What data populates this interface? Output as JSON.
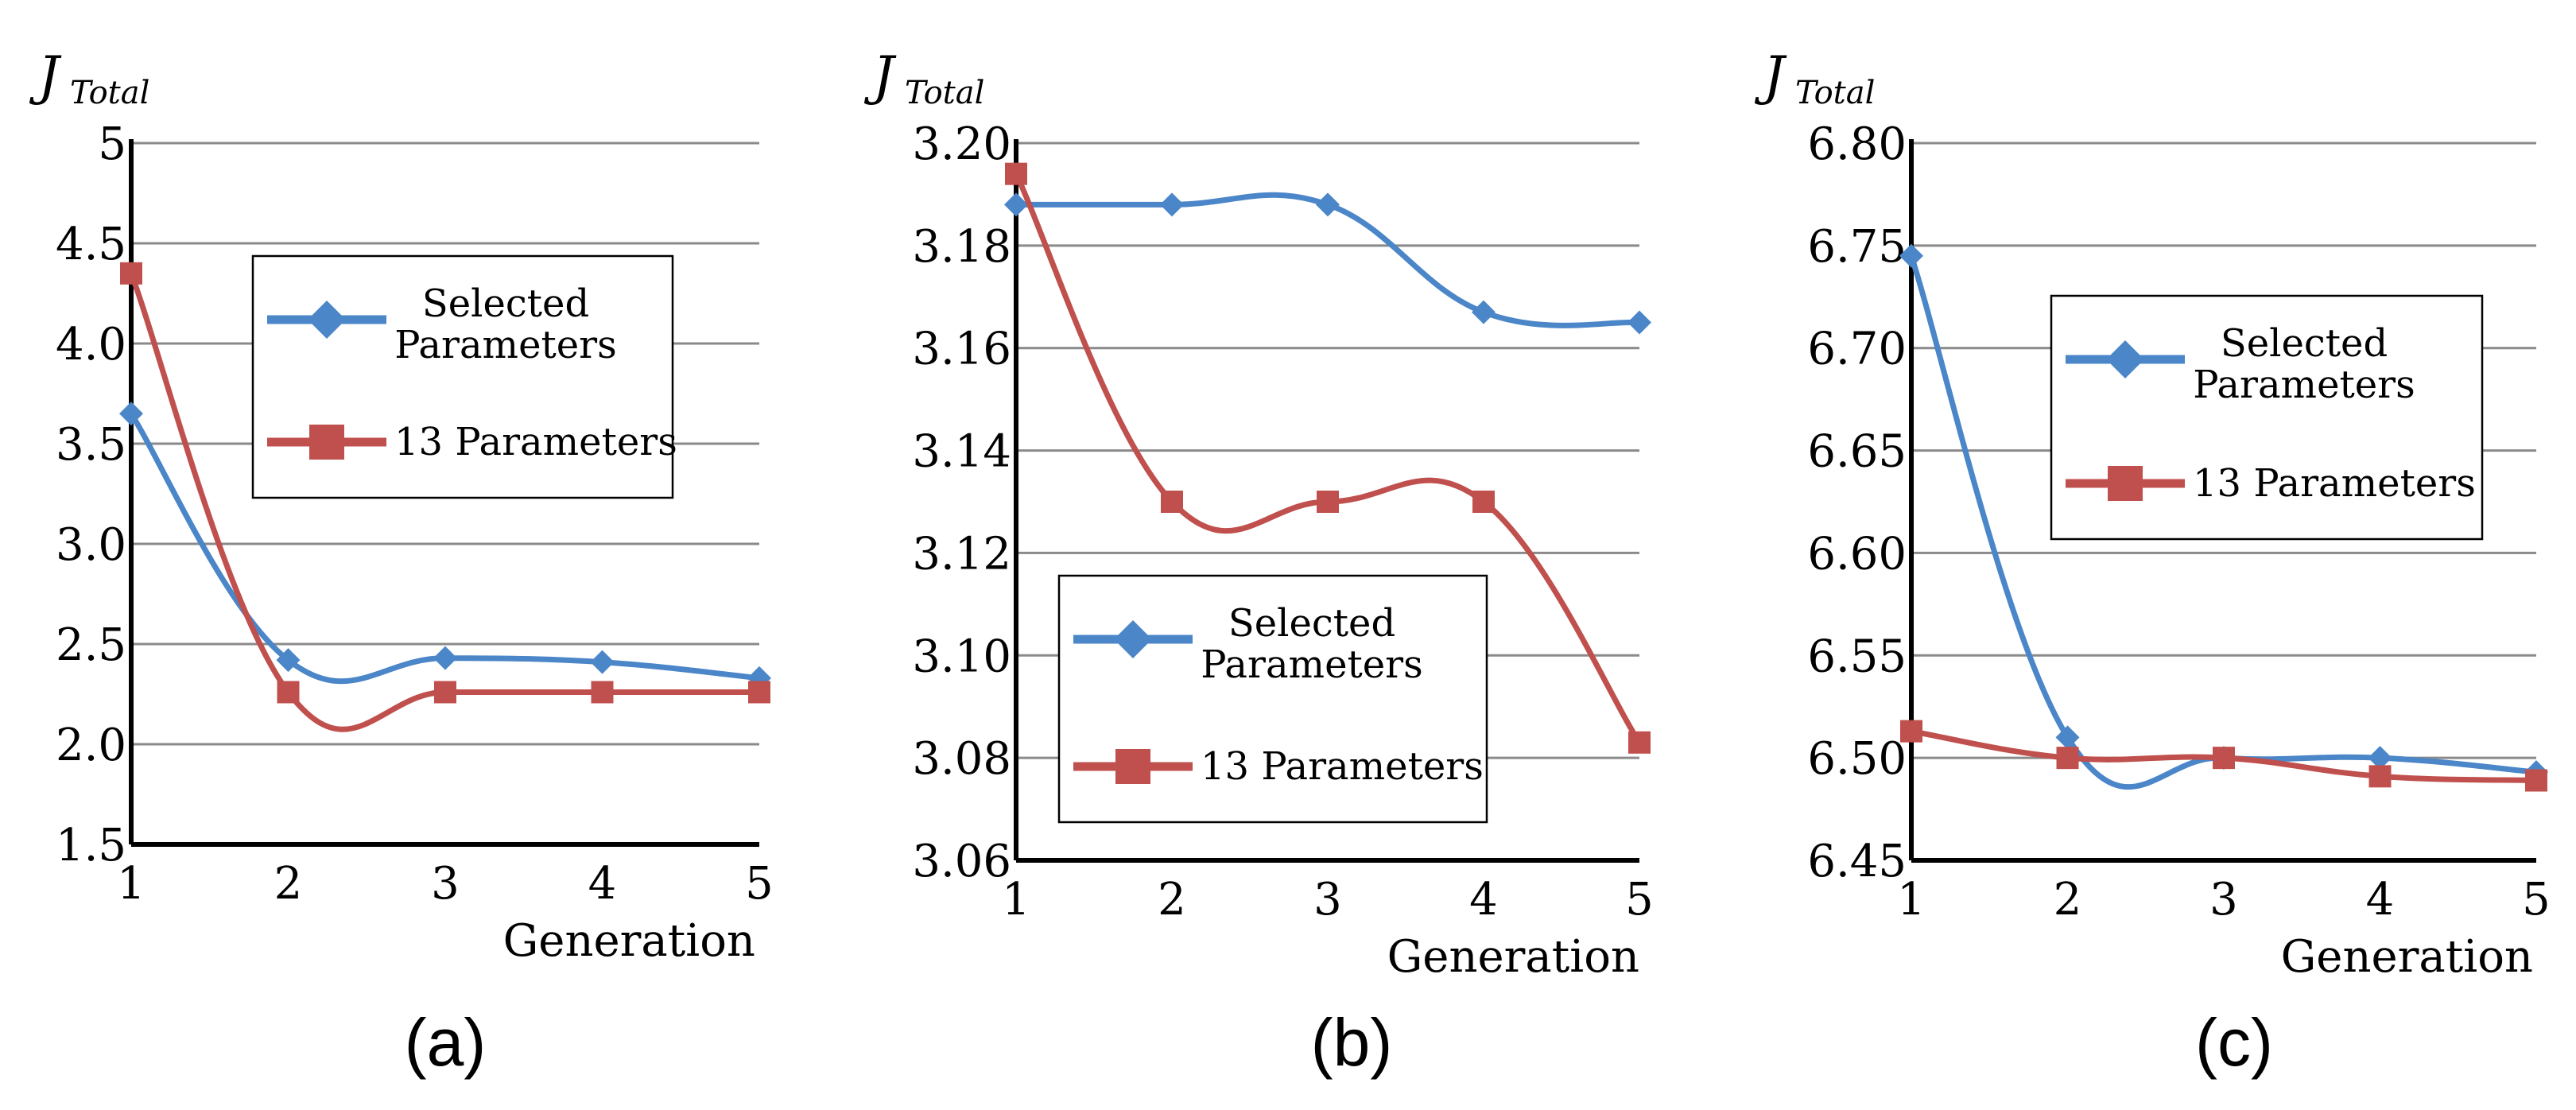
{
  "chart_data": [
    {
      "type": "line",
      "caption": "(a)",
      "ylabel": "J",
      "ylabel_sub": "Total",
      "xlabel": "Generation",
      "x": [
        1,
        2,
        3,
        4,
        5
      ],
      "xticks": [
        "1",
        "2",
        "3",
        "4",
        "5"
      ],
      "ylim": [
        1.5,
        5
      ],
      "yticks": [
        "1.5",
        "2.0",
        "2.5",
        "3.0",
        "3.5",
        "4.0",
        "4.5",
        "5"
      ],
      "grid": true,
      "legend_position": "center",
      "legend_label_lines": [
        [
          "Selected",
          "Parameters"
        ],
        [
          "13 Parameters"
        ]
      ],
      "series": [
        {
          "name": "Selected Parameters",
          "color": "#4a86c8",
          "marker": "diamond",
          "values": [
            3.65,
            2.42,
            2.43,
            2.41,
            2.33
          ]
        },
        {
          "name": "13 Parameters",
          "color": "#c0504d",
          "marker": "square",
          "values": [
            4.35,
            2.26,
            2.26,
            2.26,
            2.26
          ]
        }
      ]
    },
    {
      "type": "line",
      "caption": "(b)",
      "ylabel": "J",
      "ylabel_sub": "Total",
      "xlabel": "Generation",
      "x": [
        1,
        2,
        3,
        4,
        5
      ],
      "xticks": [
        "1",
        "2",
        "3",
        "4",
        "5"
      ],
      "ylim": [
        3.06,
        3.2
      ],
      "yticks": [
        "3.06",
        "3.08",
        "3.10",
        "3.12",
        "3.14",
        "3.16",
        "3.18",
        "3.20"
      ],
      "grid": true,
      "legend_position": "bottom-right",
      "legend_label_lines": [
        [
          "Selected",
          "Parameters"
        ],
        [
          "13 Parameters"
        ]
      ],
      "series": [
        {
          "name": "Selected Parameters",
          "color": "#4a86c8",
          "marker": "diamond",
          "values": [
            3.188,
            3.188,
            3.188,
            3.167,
            3.165
          ]
        },
        {
          "name": "13 Parameters",
          "color": "#c0504d",
          "marker": "square",
          "values": [
            3.194,
            3.13,
            3.13,
            3.13,
            3.083
          ]
        }
      ]
    },
    {
      "type": "line",
      "caption": "(c)",
      "ylabel": "J",
      "ylabel_sub": "Total",
      "xlabel": "Generation",
      "x": [
        1,
        2,
        3,
        4,
        5
      ],
      "xticks": [
        "1",
        "2",
        "3",
        "4",
        "5"
      ],
      "ylim": [
        6.45,
        6.8
      ],
      "yticks": [
        "6.45",
        "6.50",
        "6.55",
        "6.60",
        "6.65",
        "6.70",
        "6.75",
        "6.80"
      ],
      "grid": true,
      "legend_position": "top-right",
      "legend_label_lines": [
        [
          "Selected",
          "Parameters"
        ],
        [
          "13 Parameters"
        ]
      ],
      "series": [
        {
          "name": "Selected Parameters",
          "color": "#4a86c8",
          "marker": "diamond",
          "values": [
            6.745,
            6.51,
            6.5,
            6.5,
            6.493
          ]
        },
        {
          "name": "13 Parameters",
          "color": "#c0504d",
          "marker": "square",
          "values": [
            6.513,
            6.5,
            6.5,
            6.491,
            6.489
          ]
        }
      ]
    }
  ]
}
